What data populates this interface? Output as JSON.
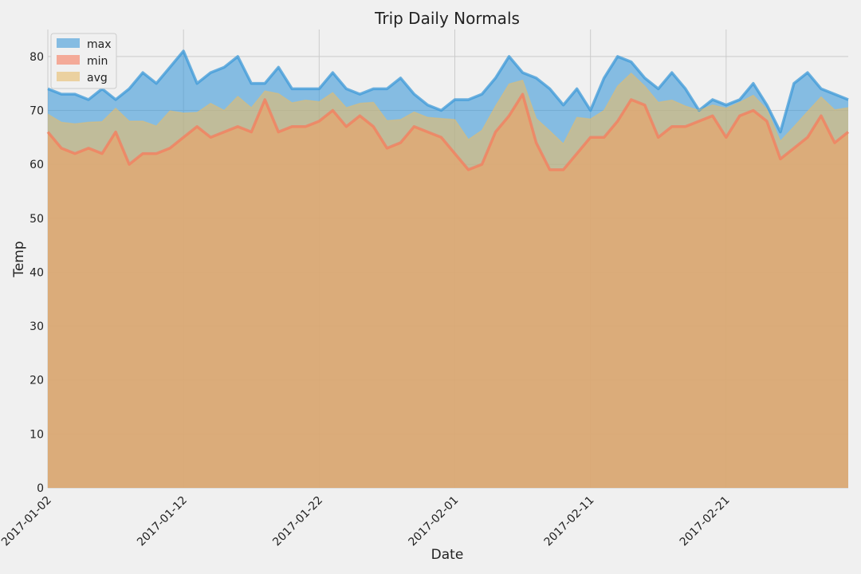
{
  "chart_data": {
    "type": "area",
    "title": "Trip Daily Normals",
    "xlabel": "Date",
    "ylabel": "Temp",
    "ylim": [
      0,
      85
    ],
    "yticks": [
      0,
      10,
      20,
      30,
      40,
      50,
      60,
      70,
      80
    ],
    "xtick_labels": [
      "2017-01-02",
      "2017-01-12",
      "2017-01-22",
      "2017-02-01",
      "2017-02-11",
      "2017-02-21"
    ],
    "grid": true,
    "legend_position": "top-left",
    "start_date": "2017-01-02",
    "dates": [
      "2017-01-02",
      "2017-01-03",
      "2017-01-04",
      "2017-01-05",
      "2017-01-06",
      "2017-01-07",
      "2017-01-08",
      "2017-01-09",
      "2017-01-10",
      "2017-01-11",
      "2017-01-12",
      "2017-01-13",
      "2017-01-14",
      "2017-01-15",
      "2017-01-16",
      "2017-01-17",
      "2017-01-18",
      "2017-01-19",
      "2017-01-20",
      "2017-01-21",
      "2017-01-22",
      "2017-01-23",
      "2017-01-24",
      "2017-01-25",
      "2017-01-26",
      "2017-01-27",
      "2017-01-28",
      "2017-01-29",
      "2017-01-30",
      "2017-01-31",
      "2017-02-01",
      "2017-02-02",
      "2017-02-03",
      "2017-02-04",
      "2017-02-05",
      "2017-02-06",
      "2017-02-07",
      "2017-02-08",
      "2017-02-09",
      "2017-02-10",
      "2017-02-11",
      "2017-02-12",
      "2017-02-13",
      "2017-02-14",
      "2017-02-15",
      "2017-02-16",
      "2017-02-17",
      "2017-02-18",
      "2017-02-19",
      "2017-02-20",
      "2017-02-21",
      "2017-02-22",
      "2017-02-23",
      "2017-02-24",
      "2017-02-25",
      "2017-02-26",
      "2017-02-27",
      "2017-02-28",
      "2017-03-01",
      "2017-03-02"
    ],
    "series": [
      {
        "name": "max",
        "color": "#3d9ad8",
        "values": [
          74,
          73,
          73,
          72,
          74,
          72,
          74,
          77,
          75,
          78,
          81,
          75,
          77,
          78,
          80,
          75,
          75,
          78,
          74,
          74,
          74,
          77,
          74,
          73,
          74,
          74,
          76,
          73,
          71,
          70,
          72,
          72,
          73,
          76,
          80,
          77,
          76,
          74,
          71,
          74,
          70,
          76,
          80,
          79,
          76,
          74,
          77,
          74,
          70,
          72,
          71,
          72,
          75,
          71,
          66,
          75,
          77,
          74,
          73,
          72
        ]
      },
      {
        "name": "min",
        "color": "#f67c5e",
        "values": [
          66,
          63,
          62,
          63,
          62,
          66,
          60,
          62,
          62,
          63,
          65,
          67,
          65,
          66,
          67,
          66,
          72,
          66,
          67,
          67,
          68,
          70,
          67,
          69,
          67,
          63,
          64,
          67,
          66,
          65,
          62,
          59,
          60,
          66,
          69,
          73,
          64,
          59,
          59,
          62,
          65,
          65,
          68,
          72,
          71,
          65,
          67,
          67,
          68,
          69,
          65,
          69,
          70,
          68,
          61,
          63,
          65,
          69,
          64,
          66
        ]
      },
      {
        "name": "avg",
        "color": "#e7bd6a",
        "values": [
          69.3,
          67.8,
          67.5,
          67.8,
          67.9,
          70.4,
          68,
          68,
          67.1,
          69.9,
          69.5,
          69.6,
          71.3,
          70,
          72.6,
          70.5,
          73.6,
          73.1,
          71.4,
          71.9,
          71.6,
          73.3,
          70.5,
          71.3,
          71.5,
          68.1,
          68.3,
          69.7,
          68.7,
          68.5,
          68.3,
          64.6,
          66.3,
          70.8,
          74.9,
          75.6,
          68.5,
          66.2,
          63.8,
          68.7,
          68.4,
          70,
          74.5,
          76.9,
          74.5,
          71.5,
          71.9,
          70.8,
          70,
          71,
          70.4,
          71.5,
          72.8,
          70.2,
          64.3,
          67,
          69.8,
          72.5,
          70.1,
          70.5
        ]
      }
    ]
  }
}
